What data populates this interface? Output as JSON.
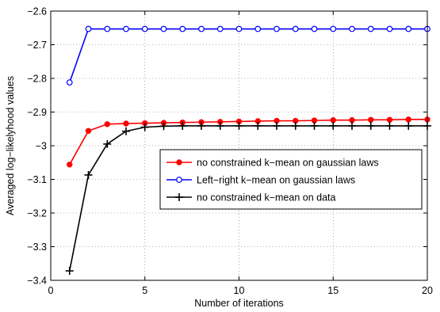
{
  "chart_data": {
    "type": "line",
    "title": "",
    "xlabel": "Number of iterations",
    "ylabel": "Averaged log−likelyhood values",
    "xlim": [
      0,
      20
    ],
    "ylim": [
      -3.4,
      -2.6
    ],
    "xticks": [
      0,
      5,
      10,
      15,
      20
    ],
    "xtick_labels": [
      "0",
      "5",
      "10",
      "15",
      "20"
    ],
    "yticks": [
      -2.6,
      -2.7,
      -2.8,
      -2.9,
      -3.0,
      -3.1,
      -3.2,
      -3.3,
      -3.4
    ],
    "ytick_labels": [
      "−2.6",
      "−2.7",
      "−2.8",
      "−2.9",
      "−3",
      "−3.1",
      "−3.2",
      "−3.3",
      "−3.4"
    ],
    "grid": true,
    "legend_position": "center-right",
    "series": [
      {
        "name": "no constrained k−mean on gaussian laws",
        "color": "#ff0000",
        "marker": "filled-circle",
        "x": [
          1,
          2,
          3,
          4,
          5,
          6,
          7,
          8,
          9,
          10,
          11,
          12,
          13,
          14,
          15,
          16,
          17,
          18,
          19,
          20
        ],
        "y": [
          -3.056,
          -2.956,
          -2.936,
          -2.934,
          -2.933,
          -2.932,
          -2.931,
          -2.93,
          -2.929,
          -2.928,
          -2.927,
          -2.926,
          -2.926,
          -2.925,
          -2.924,
          -2.924,
          -2.923,
          -2.923,
          -2.922,
          -2.922
        ]
      },
      {
        "name": "Left−right k−mean on gaussian laws",
        "color": "#0000ff",
        "marker": "open-circle",
        "x": [
          1,
          2,
          3,
          4,
          5,
          6,
          7,
          8,
          9,
          10,
          11,
          12,
          13,
          14,
          15,
          16,
          17,
          18,
          19,
          20
        ],
        "y": [
          -2.812,
          -2.653,
          -2.653,
          -2.653,
          -2.653,
          -2.653,
          -2.653,
          -2.653,
          -2.653,
          -2.653,
          -2.653,
          -2.653,
          -2.653,
          -2.653,
          -2.653,
          -2.653,
          -2.653,
          -2.653,
          -2.653,
          -2.653
        ]
      },
      {
        "name": "no constrained k−mean on data",
        "color": "#000000",
        "marker": "plus",
        "x": [
          1,
          2,
          3,
          4,
          5,
          6,
          7,
          8,
          9,
          10,
          11,
          12,
          13,
          14,
          15,
          16,
          17,
          18,
          19,
          20
        ],
        "y": [
          -3.372,
          -3.087,
          -2.995,
          -2.957,
          -2.945,
          -2.942,
          -2.941,
          -2.941,
          -2.941,
          -2.941,
          -2.941,
          -2.941,
          -2.941,
          -2.941,
          -2.941,
          -2.941,
          -2.941,
          -2.941,
          -2.941,
          -2.941
        ]
      }
    ]
  }
}
